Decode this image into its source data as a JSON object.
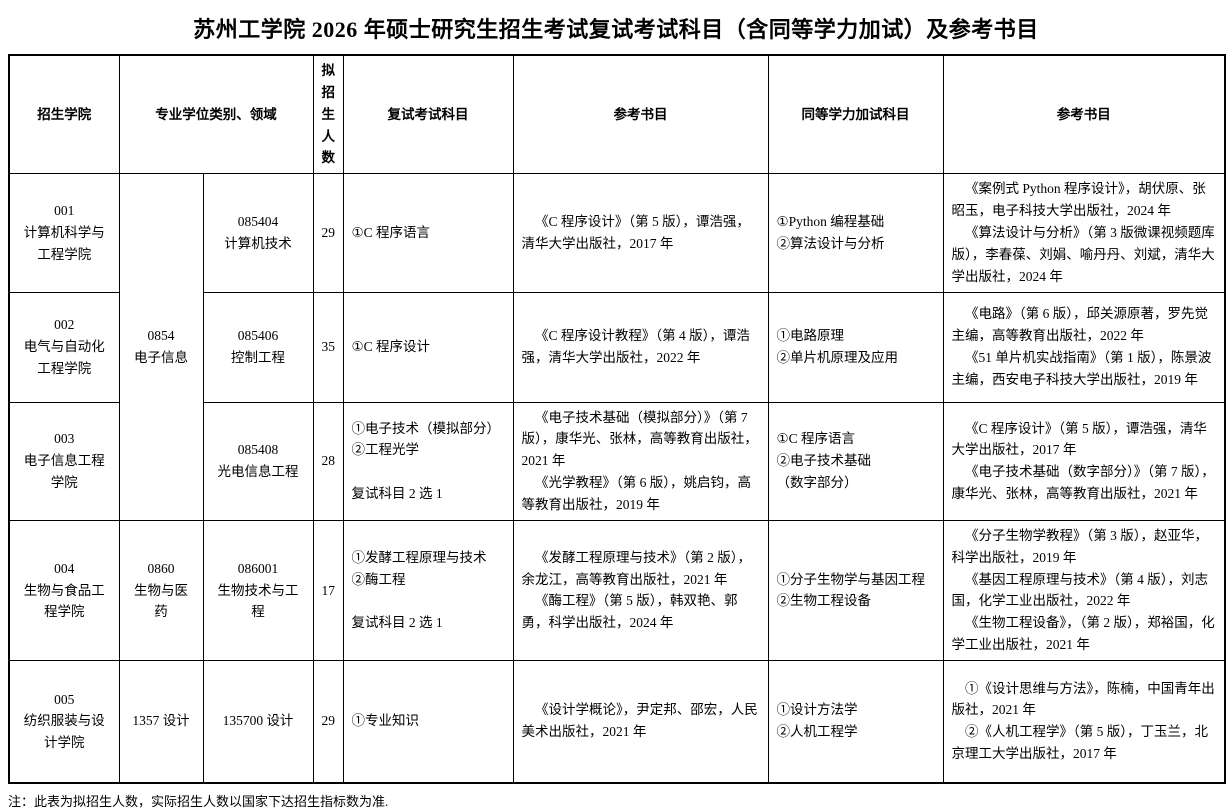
{
  "title": "苏州工学院 2026 年硕士研究生招生考试复试考试科目（含同等学力加试）及参考书目",
  "note": "注：此表为拟招生人数，实际招生人数以国家下达招生指标数为准.",
  "table": {
    "headers": {
      "college": "招生学院",
      "category_field": "专业学位类别、领域",
      "planned_enrollment": "拟招生人数",
      "retest_subjects": "复试考试科目",
      "reference_books": "参考书目",
      "equivalency_subjects": "同等学力加试科目",
      "equivalency_reference_books": "参考书目"
    },
    "category_groups": [
      {
        "label": "0854\n电子信息",
        "rowspan": 3
      },
      {
        "label": "0860\n生物与医药",
        "rowspan": 1
      },
      {
        "label": "1357 设计",
        "rowspan": 1
      }
    ],
    "rows": [
      {
        "college": "001\n计算机科学与工程学院",
        "field": "085404\n计算机技术",
        "enrollment": "29",
        "retest_subjects": "①C 程序语言",
        "retest_books": [
          "《C 程序设计》（第 5 版），谭浩强，清华大学出版社，2017 年"
        ],
        "equivalency_subjects": "①Python 编程基础\n②算法设计与分析",
        "equivalency_books": [
          "《案例式 Python 程序设计》，胡伏原、张昭玉，电子科技大学出版社，2024 年",
          "《算法设计与分析》（第 3 版微课视频题库版），李春葆、刘娟、喻丹丹、刘斌，清华大学出版社，2024 年"
        ]
      },
      {
        "college": "002\n电气与自动化工程学院",
        "field": "085406\n控制工程",
        "enrollment": "35",
        "retest_subjects": "①C 程序设计",
        "retest_books": [
          "《C 程序设计教程》（第 4 版），谭浩强，清华大学出版社，2022 年"
        ],
        "equivalency_subjects": "①电路原理\n②单片机原理及应用",
        "equivalency_books": [
          "《电路》（第 6 版），邱关源原著，罗先觉主编，高等教育出版社，2022 年",
          "《51 单片机实战指南》（第 1 版），陈景波主编，西安电子科技大学出版社，2019 年"
        ]
      },
      {
        "college": "003\n电子信息工程学院",
        "field": "085408\n光电信息工程",
        "enrollment": "28",
        "retest_subjects": "①电子技术（模拟部分）\n②工程光学\n\n复试科目 2 选 1",
        "retest_books": [
          "《电子技术基础（模拟部分）》（第 7 版），康华光、张林，高等教育出版社，2021 年",
          "《光学教程》（第 6 版），姚启钧，高等教育出版社，2019 年"
        ],
        "equivalency_subjects": "①C 程序语言\n②电子技术基础\n（数字部分）",
        "equivalency_books": [
          "《C 程序设计》（第 5 版），谭浩强，清华大学出版社，2017 年",
          "《电子技术基础（数字部分）》（第 7 版），康华光、张林，高等教育出版社，2021 年"
        ]
      },
      {
        "college": "004\n生物与食品工程学院",
        "field": "086001\n生物技术与工程",
        "enrollment": "17",
        "retest_subjects": "①发酵工程原理与技术\n②酶工程\n\n复试科目 2 选 1",
        "retest_books": [
          "《发酵工程原理与技术》（第 2 版），余龙江，高等教育出版社，2021 年",
          "《酶工程》（第 5 版），韩双艳、郭勇，科学出版社，2024 年"
        ],
        "equivalency_subjects": "①分子生物学与基因工程\n②生物工程设备",
        "equivalency_books": [
          "《分子生物学教程》（第 3 版），赵亚华，科学出版社，2019 年",
          "《基因工程原理与技术》（第 4 版），刘志国，化学工业出版社，2022 年",
          "《生物工程设备》，（第 2 版），郑裕国，化学工业出版社，2021 年"
        ]
      },
      {
        "college": "005\n纺织服装与设计学院",
        "field": "135700 设计",
        "enrollment": "29",
        "retest_subjects": "①专业知识",
        "retest_books": [
          "《设计学概论》，尹定邦、邵宏，人民美术出版社，2021 年"
        ],
        "equivalency_subjects": "①设计方法学\n②人机工程学",
        "equivalency_books": [
          "①《设计思维与方法》，陈楠，中国青年出版社，2021 年",
          "②《人机工程学》（第 5 版），丁玉兰，北京理工大学出版社，2017 年"
        ]
      }
    ]
  }
}
